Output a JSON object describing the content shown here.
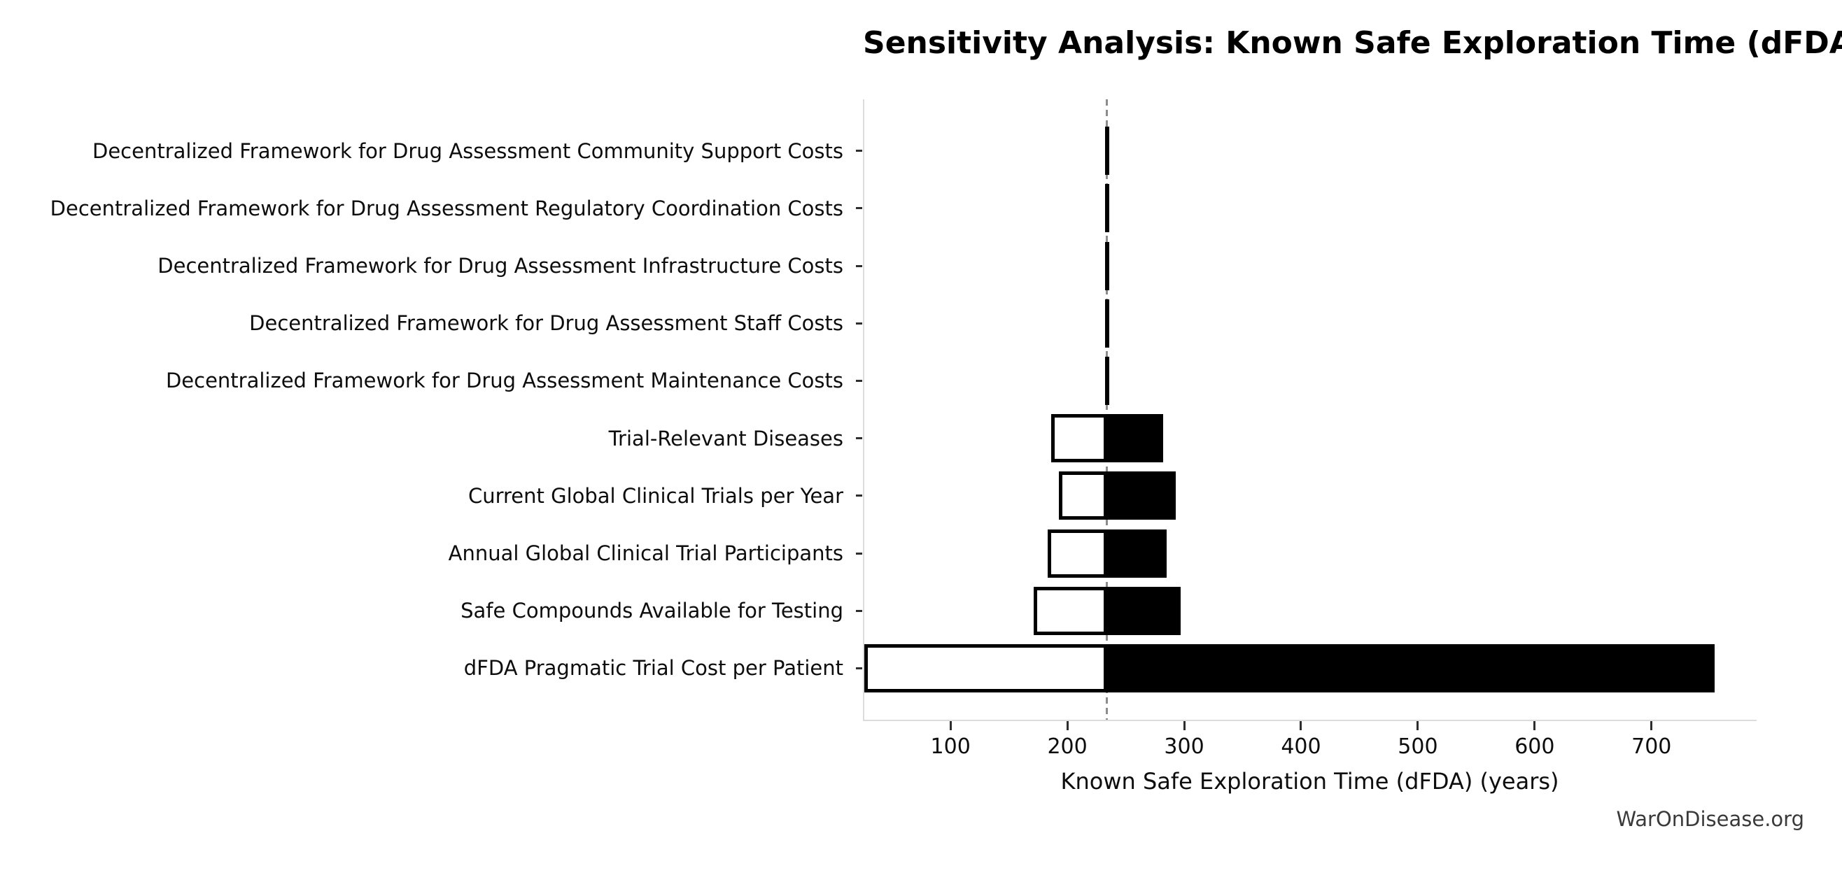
{
  "watermark": "WarOnDisease.org",
  "chart_data": {
    "type": "bar",
    "variant": "tornado",
    "orientation": "horizontal",
    "title": "Sensitivity Analysis: Known Safe Exploration Time (dFDA)",
    "xlabel": "Known Safe Exploration Time (dFDA) (years)",
    "ylabel": "",
    "grid": false,
    "legend": "none",
    "baseline": 234,
    "xlim": [
      25,
      790
    ],
    "xticks": [
      100,
      200,
      300,
      400,
      500,
      600,
      700
    ],
    "categories": [
      "Decentralized Framework for Drug Assessment Community Support Costs",
      "Decentralized Framework for Drug Assessment Regulatory Coordination Costs",
      "Decentralized Framework for Drug Assessment Infrastructure Costs",
      "Decentralized Framework for Drug Assessment Staff Costs",
      "Decentralized Framework for Drug Assessment Maintenance Costs",
      "Trial-Relevant Diseases",
      "Current Global Clinical Trials per Year",
      "Annual Global Clinical Trial Participants",
      "Safe Compounds Available for Testing",
      "dFDA Pragmatic Trial Cost per Patient"
    ],
    "series": [
      {
        "name": "low",
        "values": [
          232,
          232,
          232.1,
          232.1,
          232.2,
          186,
          193,
          183,
          171,
          26
        ]
      },
      {
        "name": "high",
        "values": [
          236,
          236,
          235.9,
          235.9,
          235.8,
          282,
          293,
          285,
          297,
          754
        ]
      }
    ],
    "colors": {
      "low_fill": "#ffffff",
      "high_fill": "#000000",
      "bar_edge": "#000000",
      "baseline_line": "#8c8c8c",
      "spine": "#dcdcdc",
      "tick": "#2e2e2e",
      "text": "#0d0d0d",
      "watermark": "#3a3a3a"
    }
  }
}
